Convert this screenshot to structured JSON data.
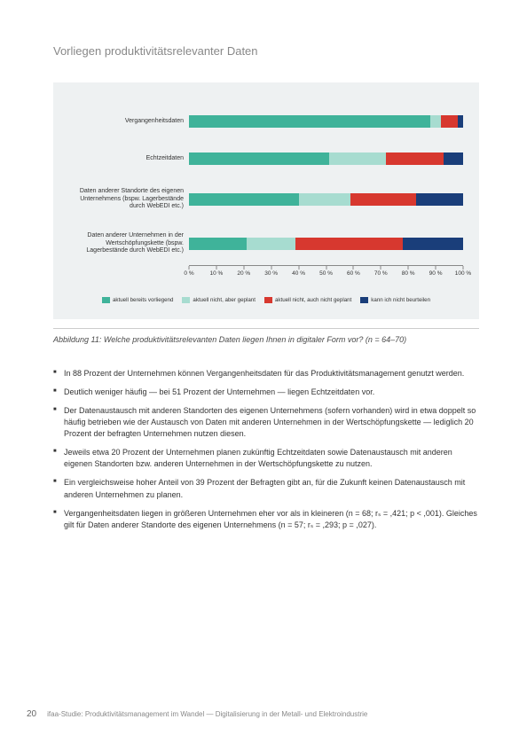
{
  "title": "Vorliegen produktivitätsrelevanter Daten",
  "chart": {
    "type": "stacked-bar-horizontal",
    "background_color": "#eef1f2",
    "xlim": [
      0,
      100
    ],
    "xtick_step": 10,
    "xtick_labels": [
      "0 %",
      "10 %",
      "20 %",
      "30 %",
      "40 %",
      "50 %",
      "60 %",
      "70 %",
      "80 %",
      "90 %",
      "100 %"
    ],
    "label_fontsize": 7,
    "tick_fontsize": 6.5,
    "categories": [
      {
        "label": "Vergangenheitsdaten",
        "values": [
          88,
          4,
          6,
          2
        ]
      },
      {
        "label": "Echtzeitdaten",
        "values": [
          51,
          21,
          21,
          7
        ]
      },
      {
        "label": "Daten anderer Standorte des eigenen Unternehmens (bspw. Lagerbestände durch WebEDI etc.)",
        "values": [
          40,
          19,
          24,
          17
        ]
      },
      {
        "label": "Daten anderer Unternehmen in der Wertschöpfungskette (bspw. Lagerbestände durch WebEDI etc.)",
        "values": [
          21,
          18,
          39,
          22
        ]
      }
    ],
    "series": [
      {
        "name": "aktuell bereits vorliegend",
        "color": "#3fb39a"
      },
      {
        "name": "aktuell nicht, aber geplant",
        "color": "#a7dcd0"
      },
      {
        "name": "aktuell nicht, auch nicht geplant",
        "color": "#d7382f"
      },
      {
        "name": "kann ich nicht beurteilen",
        "color": "#1a3e7a"
      }
    ]
  },
  "caption": "Abbildung 11: Welche produktivitätsrelevanten Daten liegen Ihnen in digitaler Form vor? (n = 64–70)",
  "bullets": [
    "In 88 Prozent der Unternehmen können Vergangenheitsdaten für das Produktivitätsmanagement genutzt werden.",
    "Deutlich weniger häufig — bei 51 Prozent der Unternehmen — liegen Echtzeitdaten vor.",
    "Der Datenaustausch mit anderen Standorten des eigenen Unternehmens (sofern vorhanden) wird in etwa doppelt so häufig betrieben wie der Austausch von Daten mit anderen Unternehmen in der Wertschöpfungskette — lediglich 20 Prozent der befragten Unternehmen nutzen diesen.",
    "Jeweils etwa 20 Prozent der Unternehmen planen zukünftig Echtzeitdaten sowie Datenaustausch mit anderen eigenen Standorten bzw. anderen Unternehmen in der Wertschöpfungskette zu nutzen.",
    "Ein vergleichsweise hoher Anteil von 39 Prozent der Befragten gibt an, für die Zukunft keinen Datenaustausch mit anderen Unternehmen zu planen.",
    "Vergangenheitsdaten liegen in größeren Unternehmen eher vor als in kleineren (n = 68; rₛ = ,421; p < ,001). Gleiches gilt für Daten anderer Standorte des eigenen Unternehmens (n = 57; rₛ = ,293; p = ,027)."
  ],
  "footer": {
    "page": "20",
    "text": "ifaa-Studie: Produktivitätsmanagement im Wandel — Digitalisierung in der Metall- und Elektroindustrie"
  }
}
